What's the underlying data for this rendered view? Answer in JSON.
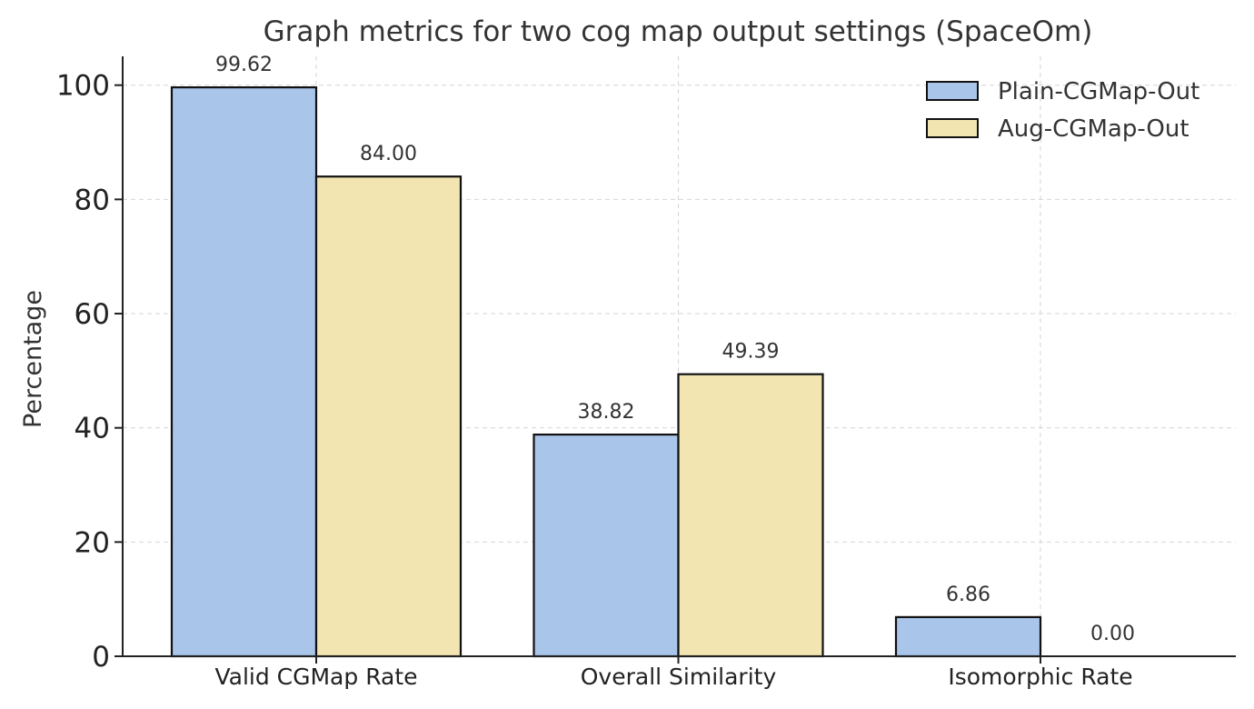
{
  "chart_data": {
    "type": "bar",
    "title": "Graph metrics for two cog map output settings (SpaceOm)",
    "xlabel": "",
    "ylabel": "Percentage",
    "categories": [
      "Valid CGMap Rate",
      "Overall Similarity",
      "Isomorphic Rate"
    ],
    "series": [
      {
        "name": "Plain-CGMap-Out",
        "values": [
          99.62,
          38.82,
          6.86
        ],
        "labels": [
          "99.62",
          "38.82",
          "6.86"
        ],
        "color": "#a9c6ea"
      },
      {
        "name": "Aug-CGMap-Out",
        "values": [
          84.0,
          49.39,
          0.0
        ],
        "labels": [
          "84.00",
          "49.39",
          "0.00"
        ],
        "color": "#f2e5b1"
      }
    ],
    "ylim": [
      0,
      105
    ],
    "yticks": [
      0,
      20,
      40,
      60,
      80,
      100
    ],
    "grid": true,
    "legend_position": "top-right"
  }
}
